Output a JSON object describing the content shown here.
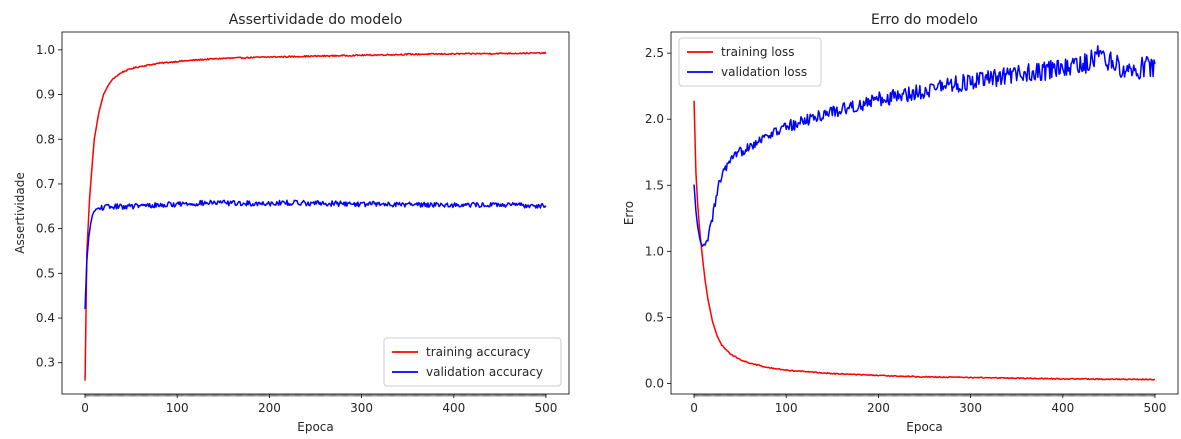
{
  "chart_data": [
    {
      "type": "line",
      "title": "Assertividade do modelo",
      "xlabel": "Epoca",
      "ylabel": "Assertividade",
      "xlim": [
        -25,
        525
      ],
      "ylim": [
        0.23,
        1.04
      ],
      "xticks": [
        0,
        100,
        200,
        300,
        400,
        500
      ],
      "yticks": [
        0.3,
        0.4,
        0.5,
        0.6,
        0.7,
        0.8,
        0.9,
        1.0
      ],
      "xtick_labels": [
        "0",
        "100",
        "200",
        "300",
        "400",
        "500"
      ],
      "ytick_labels": [
        "0.3",
        "0.4",
        "0.5",
        "0.6",
        "0.7",
        "0.8",
        "0.9",
        "1.0"
      ],
      "grid": false,
      "legend_position": "lower-right",
      "series": [
        {
          "name": "training accuracy",
          "color": "#ff0000",
          "x": [
            0,
            2,
            5,
            8,
            10,
            15,
            20,
            25,
            30,
            40,
            50,
            60,
            80,
            100,
            125,
            150,
            200,
            250,
            300,
            350,
            400,
            450,
            500
          ],
          "y": [
            0.26,
            0.55,
            0.67,
            0.75,
            0.8,
            0.86,
            0.9,
            0.92,
            0.935,
            0.95,
            0.958,
            0.963,
            0.97,
            0.974,
            0.978,
            0.981,
            0.984,
            0.986,
            0.988,
            0.99,
            0.991,
            0.992,
            0.993
          ]
        },
        {
          "name": "validation accuracy",
          "color": "#0000ff",
          "x": [
            0,
            2,
            4,
            6,
            8,
            10,
            15,
            20,
            30,
            50,
            75,
            100,
            125,
            150,
            175,
            200,
            225,
            250,
            275,
            300,
            325,
            350,
            375,
            400,
            425,
            450,
            475,
            500
          ],
          "y": [
            0.42,
            0.53,
            0.58,
            0.61,
            0.63,
            0.64,
            0.645,
            0.648,
            0.649,
            0.65,
            0.652,
            0.655,
            0.657,
            0.658,
            0.656,
            0.657,
            0.658,
            0.657,
            0.656,
            0.655,
            0.655,
            0.654,
            0.654,
            0.653,
            0.653,
            0.653,
            0.652,
            0.652
          ]
        }
      ]
    },
    {
      "type": "line",
      "title": "Erro do modelo",
      "xlabel": "Epoca",
      "ylabel": "Erro",
      "xlim": [
        -25,
        525
      ],
      "ylim": [
        -0.08,
        2.66
      ],
      "xticks": [
        0,
        100,
        200,
        300,
        400,
        500
      ],
      "yticks": [
        0.0,
        0.5,
        1.0,
        1.5,
        2.0,
        2.5
      ],
      "xtick_labels": [
        "0",
        "100",
        "200",
        "300",
        "400",
        "500"
      ],
      "ytick_labels": [
        "0.0",
        "0.5",
        "1.0",
        "1.5",
        "2.0",
        "2.5"
      ],
      "grid": false,
      "legend_position": "upper-left",
      "series": [
        {
          "name": "training loss",
          "color": "#ff0000",
          "x": [
            0,
            2,
            4,
            6,
            8,
            10,
            12,
            15,
            20,
            25,
            30,
            40,
            50,
            60,
            80,
            100,
            150,
            200,
            250,
            300,
            350,
            400,
            450,
            500
          ],
          "y": [
            2.14,
            1.6,
            1.35,
            1.17,
            1.03,
            0.9,
            0.78,
            0.64,
            0.47,
            0.36,
            0.29,
            0.22,
            0.18,
            0.155,
            0.12,
            0.1,
            0.075,
            0.06,
            0.05,
            0.045,
            0.04,
            0.035,
            0.032,
            0.03
          ]
        },
        {
          "name": "validation loss",
          "color": "#0000ff",
          "x": [
            0,
            2,
            4,
            6,
            8,
            10,
            12,
            15,
            20,
            25,
            30,
            40,
            50,
            60,
            80,
            100,
            125,
            150,
            175,
            200,
            225,
            250,
            275,
            300,
            325,
            350,
            375,
            400,
            425,
            440,
            450,
            460,
            475,
            500
          ],
          "y": [
            1.5,
            1.3,
            1.18,
            1.1,
            1.05,
            1.04,
            1.05,
            1.1,
            1.25,
            1.45,
            1.58,
            1.68,
            1.75,
            1.8,
            1.88,
            1.94,
            2.0,
            2.06,
            2.1,
            2.15,
            2.18,
            2.22,
            2.26,
            2.28,
            2.31,
            2.34,
            2.36,
            2.38,
            2.42,
            2.5,
            2.44,
            2.4,
            2.38,
            2.4
          ]
        }
      ]
    }
  ]
}
